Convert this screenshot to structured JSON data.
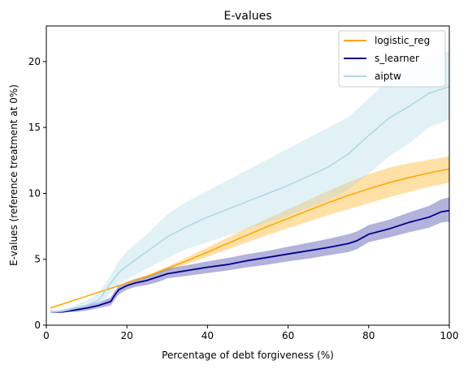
{
  "chart_data": {
    "type": "line",
    "title": "E-values",
    "xlabel": "Percentage of debt forgiveness (%)",
    "ylabel": "E-values (reference treatment at 0%)",
    "xlim": [
      0,
      100
    ],
    "ylim": [
      0,
      22.7
    ],
    "xticks": [
      0,
      20,
      40,
      60,
      80,
      100
    ],
    "yticks": [
      0,
      5,
      10,
      15,
      20
    ],
    "grid": false,
    "legend": "top-right",
    "series": [
      {
        "name": "logistic_reg",
        "color": "#ffa500",
        "band_color": "#ffa500",
        "band_opacity": 0.35,
        "x": [
          1,
          5,
          10,
          15,
          20,
          25,
          30,
          35,
          40,
          45,
          50,
          55,
          60,
          65,
          70,
          75,
          80,
          85,
          90,
          95,
          100
        ],
        "values": [
          1.3,
          1.7,
          2.2,
          2.7,
          3.2,
          3.7,
          4.3,
          4.9,
          5.55,
          6.2,
          6.85,
          7.5,
          8.1,
          8.7,
          9.3,
          9.85,
          10.35,
          10.8,
          11.2,
          11.55,
          11.85
        ],
        "lower": [
          1.3,
          1.7,
          2.2,
          2.7,
          3.15,
          3.6,
          4.15,
          4.65,
          5.2,
          5.75,
          6.3,
          6.85,
          7.35,
          7.85,
          8.35,
          8.8,
          9.25,
          9.7,
          10.1,
          10.5,
          10.8
        ],
        "upper": [
          1.3,
          1.7,
          2.2,
          2.7,
          3.25,
          3.8,
          4.45,
          5.15,
          5.9,
          6.65,
          7.4,
          8.1,
          8.8,
          9.5,
          10.2,
          10.85,
          11.45,
          11.95,
          12.3,
          12.55,
          12.8
        ]
      },
      {
        "name": "s_learner",
        "color": "#00008b",
        "band_color": "#00008b",
        "band_opacity": 0.3,
        "x": [
          1,
          4,
          7,
          10,
          13,
          16,
          17,
          18,
          20,
          22,
          25,
          28,
          30,
          35,
          40,
          45,
          50,
          55,
          60,
          65,
          70,
          75,
          77,
          80,
          85,
          90,
          95,
          98,
          100
        ],
        "values": [
          1.0,
          1.0,
          1.15,
          1.3,
          1.5,
          1.8,
          2.3,
          2.7,
          3.0,
          3.2,
          3.4,
          3.7,
          3.9,
          4.15,
          4.4,
          4.6,
          4.9,
          5.15,
          5.4,
          5.65,
          5.9,
          6.2,
          6.4,
          6.9,
          7.3,
          7.8,
          8.2,
          8.6,
          8.7
        ],
        "lower": [
          1.0,
          1.0,
          1.0,
          1.1,
          1.3,
          1.5,
          1.95,
          2.35,
          2.7,
          2.9,
          3.05,
          3.3,
          3.55,
          3.75,
          3.95,
          4.15,
          4.4,
          4.6,
          4.85,
          5.05,
          5.3,
          5.55,
          5.75,
          6.3,
          6.65,
          7.05,
          7.4,
          7.8,
          7.85
        ],
        "upper": [
          1.05,
          1.15,
          1.35,
          1.55,
          1.75,
          2.1,
          2.6,
          3.0,
          3.3,
          3.5,
          3.75,
          4.05,
          4.3,
          4.55,
          4.85,
          5.1,
          5.4,
          5.65,
          5.95,
          6.25,
          6.55,
          6.9,
          7.1,
          7.6,
          8.0,
          8.55,
          9.05,
          9.55,
          9.7
        ]
      },
      {
        "name": "aiptw",
        "color": "#add8e6",
        "band_color": "#add8e6",
        "band_opacity": 0.35,
        "x": [
          1,
          4,
          7,
          10,
          13,
          16,
          18,
          20,
          25,
          30,
          35,
          40,
          45,
          50,
          55,
          60,
          65,
          70,
          75,
          80,
          85,
          90,
          95,
          100
        ],
        "values": [
          1.0,
          1.05,
          1.25,
          1.5,
          1.9,
          3.2,
          4.0,
          4.5,
          5.6,
          6.7,
          7.5,
          8.2,
          8.8,
          9.4,
          10.0,
          10.6,
          11.3,
          12.0,
          13.0,
          14.4,
          15.7,
          16.6,
          17.6,
          18.1
        ],
        "lower": [
          1.0,
          1.0,
          1.05,
          1.2,
          1.5,
          2.5,
          3.1,
          3.5,
          4.3,
          5.1,
          5.8,
          6.3,
          6.8,
          7.3,
          7.8,
          8.3,
          8.9,
          9.5,
          10.3,
          11.5,
          12.8,
          13.8,
          15.0,
          15.6
        ],
        "upper": [
          1.05,
          1.15,
          1.5,
          1.9,
          2.4,
          3.8,
          4.9,
          5.6,
          6.9,
          8.4,
          9.4,
          10.2,
          11.0,
          11.8,
          12.6,
          13.4,
          14.2,
          15.0,
          15.8,
          17.2,
          18.6,
          19.6,
          20.4,
          20.8
        ]
      }
    ]
  }
}
